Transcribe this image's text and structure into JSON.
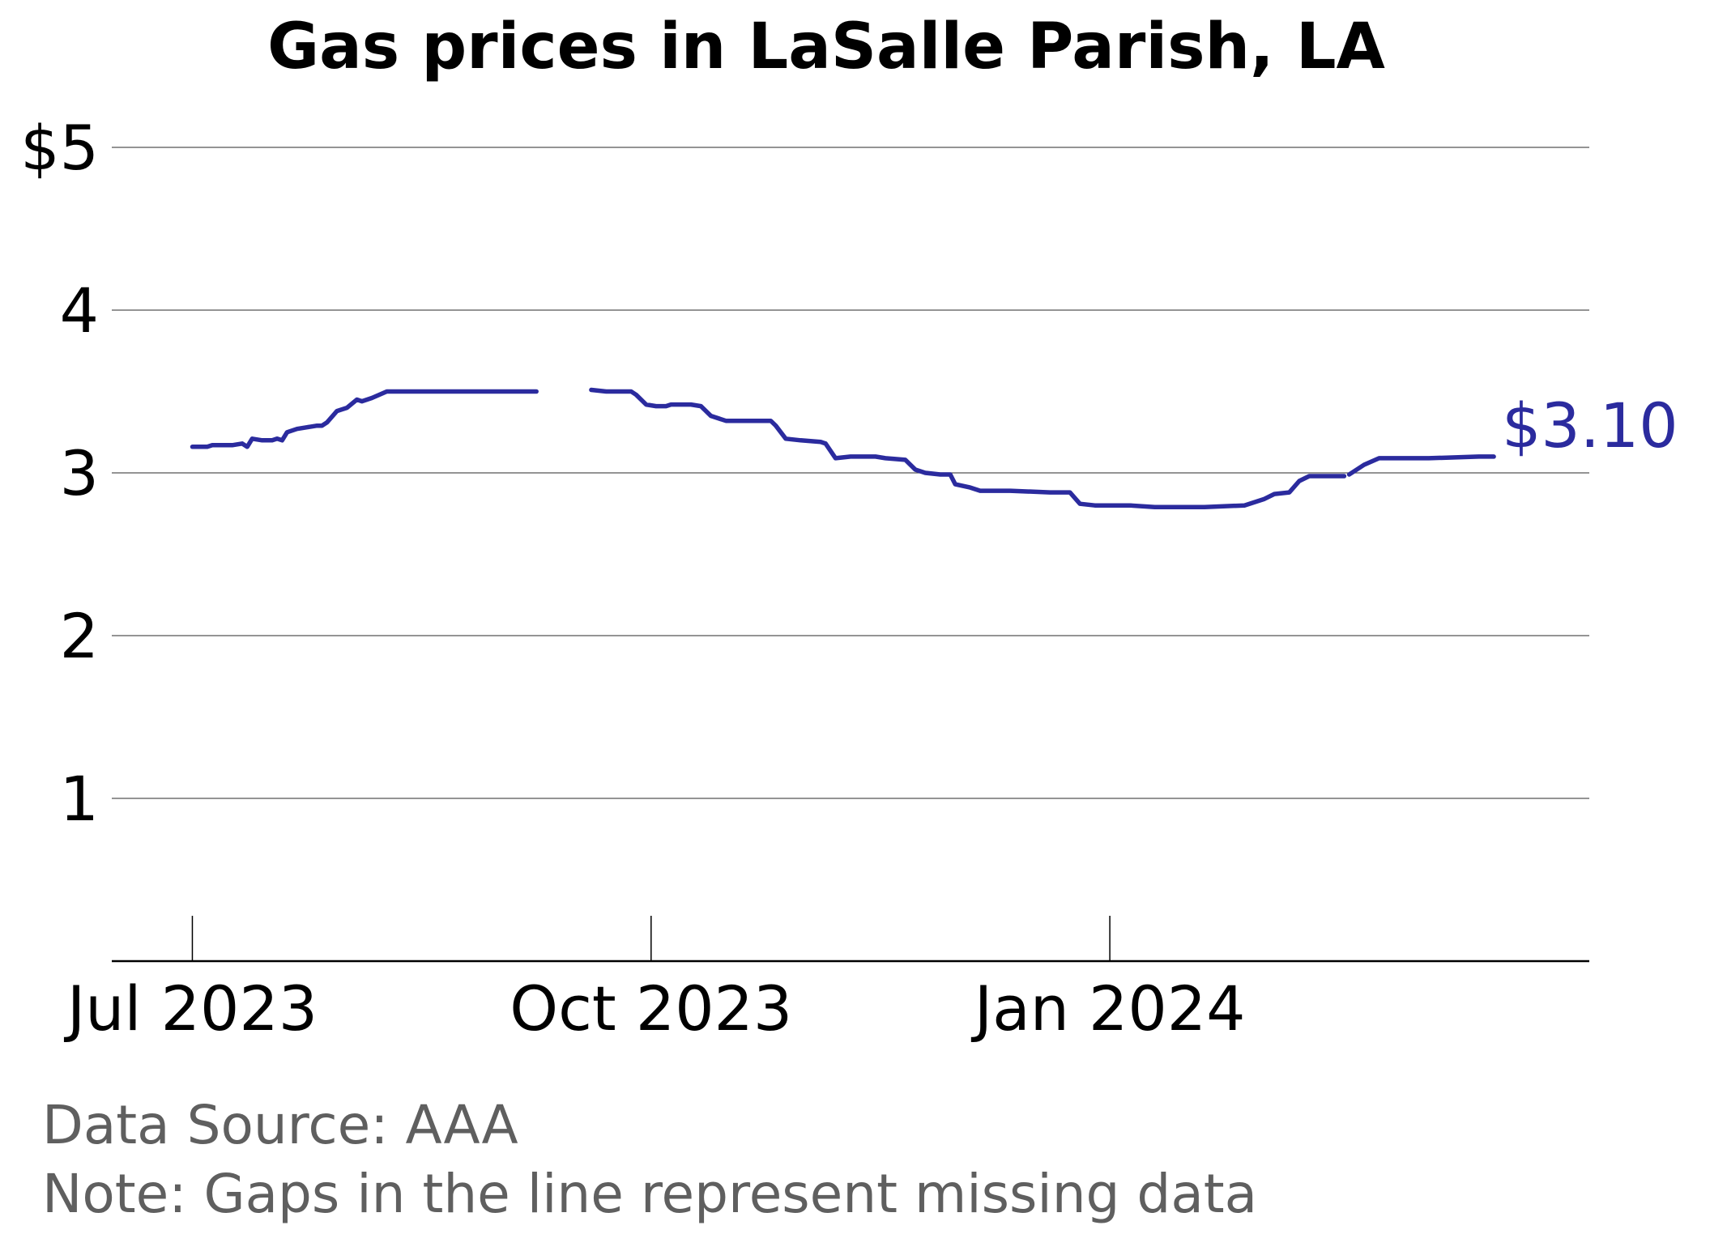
{
  "chart_data": {
    "type": "line",
    "title": "Gas prices in LaSalle Parish, LA",
    "xlabel": "",
    "ylabel": "",
    "x_range": [
      "2023-06-28",
      "2024-03-24"
    ],
    "ylim": [
      0,
      5
    ],
    "y_ticks": [
      {
        "value": 1,
        "label": "1"
      },
      {
        "value": 2,
        "label": "2"
      },
      {
        "value": 3,
        "label": "3"
      },
      {
        "value": 4,
        "label": "4"
      },
      {
        "value": 5,
        "label": "$5"
      }
    ],
    "x_ticks": [
      {
        "value": "2023-07-01",
        "label": "Jul 2023"
      },
      {
        "value": "2023-10-01",
        "label": "Oct 2023"
      },
      {
        "value": "2024-01-01",
        "label": "Jan 2024"
      }
    ],
    "grid": true,
    "line_color": "#2b2b9e",
    "end_label": "$3.10",
    "series": [
      {
        "segments": [
          [
            [
              "2023-07-01",
              3.16
            ],
            [
              "2023-07-04",
              3.16
            ],
            [
              "2023-07-05",
              3.17
            ],
            [
              "2023-07-09",
              3.17
            ],
            [
              "2023-07-11",
              3.18
            ],
            [
              "2023-07-12",
              3.16
            ],
            [
              "2023-07-13",
              3.21
            ],
            [
              "2023-07-15",
              3.2
            ],
            [
              "2023-07-17",
              3.2
            ],
            [
              "2023-07-18",
              3.21
            ],
            [
              "2023-07-19",
              3.2
            ],
            [
              "2023-07-20",
              3.25
            ],
            [
              "2023-07-22",
              3.27
            ],
            [
              "2023-07-24",
              3.28
            ],
            [
              "2023-07-26",
              3.29
            ],
            [
              "2023-07-27",
              3.29
            ],
            [
              "2023-07-28",
              3.31
            ],
            [
              "2023-07-30",
              3.38
            ],
            [
              "2023-08-01",
              3.4
            ],
            [
              "2023-08-03",
              3.45
            ],
            [
              "2023-08-04",
              3.44
            ],
            [
              "2023-08-06",
              3.46
            ],
            [
              "2023-08-09",
              3.5
            ],
            [
              "2023-08-12",
              3.5
            ],
            [
              "2023-08-18",
              3.5
            ],
            [
              "2023-08-24",
              3.5
            ],
            [
              "2023-09-01",
              3.5
            ],
            [
              "2023-09-08",
              3.5
            ]
          ],
          [
            [
              "2023-09-19",
              3.51
            ],
            [
              "2023-09-22",
              3.5
            ],
            [
              "2023-09-27",
              3.5
            ],
            [
              "2023-09-28",
              3.48
            ],
            [
              "2023-09-30",
              3.42
            ],
            [
              "2023-10-02",
              3.41
            ],
            [
              "2023-10-04",
              3.41
            ],
            [
              "2023-10-05",
              3.42
            ],
            [
              "2023-10-09",
              3.42
            ],
            [
              "2023-10-11",
              3.41
            ],
            [
              "2023-10-13",
              3.35
            ],
            [
              "2023-10-16",
              3.32
            ],
            [
              "2023-10-19",
              3.32
            ],
            [
              "2023-10-25",
              3.32
            ],
            [
              "2023-10-26",
              3.29
            ],
            [
              "2023-10-28",
              3.21
            ],
            [
              "2023-10-31",
              3.2
            ],
            [
              "2023-11-04",
              3.19
            ],
            [
              "2023-11-05",
              3.18
            ],
            [
              "2023-11-07",
              3.09
            ],
            [
              "2023-11-10",
              3.1
            ],
            [
              "2023-11-15",
              3.1
            ],
            [
              "2023-11-17",
              3.09
            ],
            [
              "2023-11-21",
              3.08
            ],
            [
              "2023-11-23",
              3.02
            ],
            [
              "2023-11-25",
              3.0
            ],
            [
              "2023-11-28",
              2.99
            ],
            [
              "2023-11-30",
              2.99
            ],
            [
              "2023-12-01",
              2.93
            ],
            [
              "2023-12-04",
              2.91
            ],
            [
              "2023-12-06",
              2.89
            ],
            [
              "2023-12-08",
              2.89
            ],
            [
              "2023-12-12",
              2.89
            ],
            [
              "2023-12-20",
              2.88
            ],
            [
              "2023-12-24",
              2.88
            ],
            [
              "2023-12-26",
              2.81
            ],
            [
              "2023-12-29",
              2.8
            ],
            [
              "2024-01-05",
              2.8
            ],
            [
              "2024-01-10",
              2.79
            ],
            [
              "2024-01-20",
              2.79
            ],
            [
              "2024-01-28",
              2.8
            ],
            [
              "2024-02-01",
              2.84
            ],
            [
              "2024-02-03",
              2.87
            ],
            [
              "2024-02-06",
              2.88
            ],
            [
              "2024-02-08",
              2.95
            ],
            [
              "2024-02-10",
              2.98
            ],
            [
              "2024-02-14",
              2.98
            ],
            [
              "2024-02-17",
              2.98
            ]
          ],
          [
            [
              "2024-02-18",
              2.99
            ],
            [
              "2024-02-21",
              3.05
            ],
            [
              "2024-02-24",
              3.09
            ],
            [
              "2024-02-28",
              3.09
            ],
            [
              "2024-03-05",
              3.09
            ],
            [
              "2024-03-15",
              3.1
            ],
            [
              "2024-03-18",
              3.1
            ]
          ]
        ]
      }
    ]
  },
  "footer": {
    "source": "Data Source: AAA",
    "note": "Note: Gaps in the line represent missing data"
  }
}
